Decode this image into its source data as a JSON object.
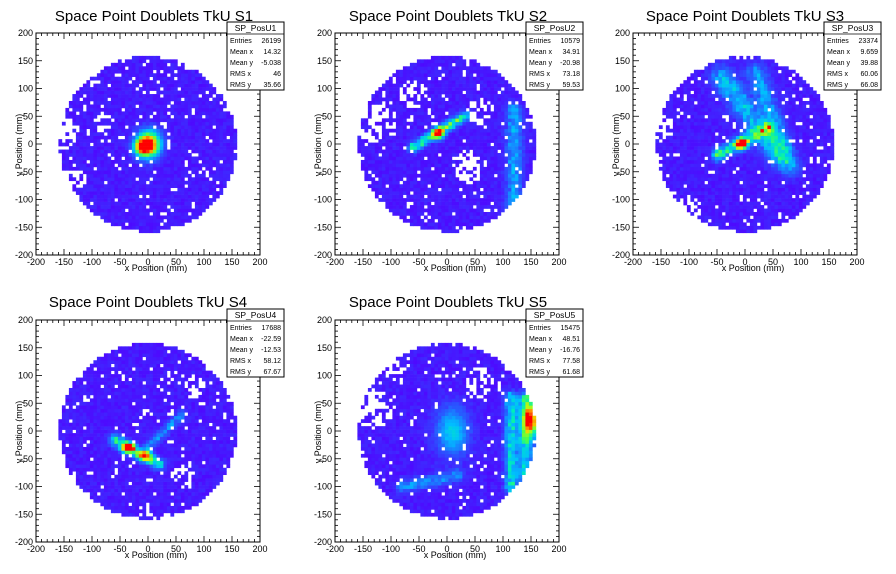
{
  "chart_data": [
    {
      "type": "heatmap",
      "title": "Space Point Doublets TkU S1",
      "xlabel": "x Position (mm)",
      "ylabel": "y Position (mm)",
      "xlim": [
        -200,
        200
      ],
      "ylim": [
        -200,
        200
      ],
      "x_ticks": [
        "-200",
        "-150",
        "-100",
        "-50",
        "0",
        "50",
        "100",
        "150",
        "200"
      ],
      "y_ticks": [
        "-200",
        "-150",
        "-100",
        "-50",
        "0",
        "50",
        "100",
        "150",
        "200"
      ],
      "stats": {
        "name": "SP_PosU1",
        "rows": [
          {
            "label": "Entries",
            "value": "26199"
          },
          {
            "label": "Mean x",
            "value": "14.32"
          },
          {
            "label": "Mean y",
            "value": "-5.038"
          },
          {
            "label": "RMS x",
            "value": "46"
          },
          {
            "label": "RMS y",
            "value": "35.66"
          }
        ]
      },
      "hotspots": [
        {
          "x": 2,
          "y": 0,
          "sx": 14,
          "sy": 16,
          "amp": 1.0
        },
        {
          "x": -12,
          "y": -5,
          "sx": 10,
          "sy": 10,
          "amp": 0.6
        }
      ],
      "ridges": [],
      "holes": [
        {
          "x": -150,
          "y": 20,
          "r": 28
        },
        {
          "x": -130,
          "y": -60,
          "r": 22
        },
        {
          "x": -80,
          "y": 40,
          "r": 16
        }
      ]
    },
    {
      "type": "heatmap",
      "title": "Space Point Doublets TkU S2",
      "xlabel": "x Position (mm)",
      "ylabel": "y Position (mm)",
      "xlim": [
        -200,
        200
      ],
      "ylim": [
        -200,
        200
      ],
      "x_ticks": [
        "-200",
        "-150",
        "-100",
        "-50",
        "0",
        "50",
        "100",
        "150",
        "200"
      ],
      "y_ticks": [
        "-200",
        "-150",
        "-100",
        "-50",
        "0",
        "50",
        "100",
        "150",
        "200"
      ],
      "stats": {
        "name": "SP_PosU2",
        "rows": [
          {
            "label": "Entries",
            "value": "10579"
          },
          {
            "label": "Mean x",
            "value": "34.91"
          },
          {
            "label": "Mean y",
            "value": "-20.98"
          },
          {
            "label": "RMS x",
            "value": "73.18"
          },
          {
            "label": "RMS y",
            "value": "59.53"
          }
        ]
      },
      "hotspots": [
        {
          "x": -15,
          "y": 20,
          "sx": 7,
          "sy": 7,
          "amp": 0.85
        }
      ],
      "ridges": [
        {
          "x1": -60,
          "y1": -5,
          "x2": 30,
          "y2": 50,
          "w": 6,
          "amp": 0.55
        },
        {
          "x1": 120,
          "y1": -120,
          "x2": 120,
          "y2": 60,
          "w": 10,
          "amp": 0.3
        }
      ],
      "holes": [
        {
          "x": -130,
          "y": 40,
          "r": 40
        },
        {
          "x": -60,
          "y": 90,
          "r": 25
        },
        {
          "x": 60,
          "y": 60,
          "r": 24
        },
        {
          "x": 40,
          "y": -40,
          "r": 30
        }
      ]
    },
    {
      "type": "heatmap",
      "title": "Space Point Doublets TkU S3",
      "xlabel": "x Position (mm)",
      "ylabel": "y Position (mm)",
      "xlim": [
        -200,
        200
      ],
      "ylim": [
        -200,
        200
      ],
      "x_ticks": [
        "-200",
        "-150",
        "-100",
        "-50",
        "0",
        "50",
        "100",
        "150",
        "200"
      ],
      "y_ticks": [
        "-200",
        "-150",
        "-100",
        "-50",
        "0",
        "50",
        "100",
        "150",
        "200"
      ],
      "stats": {
        "name": "SP_PosU3",
        "rows": [
          {
            "label": "Entries",
            "value": "23374"
          },
          {
            "label": "Mean x",
            "value": "9.659"
          },
          {
            "label": "Mean y",
            "value": "39.88"
          },
          {
            "label": "RMS x",
            "value": "60.06"
          },
          {
            "label": "RMS y",
            "value": "66.08"
          }
        ]
      },
      "hotspots": [
        {
          "x": -5,
          "y": 0,
          "sx": 7,
          "sy": 7,
          "amp": 0.9
        }
      ],
      "ridges": [
        {
          "x1": -50,
          "y1": -20,
          "x2": 40,
          "y2": 30,
          "w": 7,
          "amp": 0.55
        },
        {
          "x1": -40,
          "y1": 120,
          "x2": 60,
          "y2": -20,
          "w": 14,
          "amp": 0.35
        },
        {
          "x1": 20,
          "y1": 130,
          "x2": 80,
          "y2": -40,
          "w": 12,
          "amp": 0.3
        }
      ],
      "holes": [
        {
          "x": -150,
          "y": 30,
          "r": 25
        },
        {
          "x": -100,
          "y": -120,
          "r": 25
        }
      ]
    },
    {
      "type": "heatmap",
      "title": "Space Point Doublets TkU S4",
      "xlabel": "x Position (mm)",
      "ylabel": "y Position (mm)",
      "xlim": [
        -200,
        200
      ],
      "ylim": [
        -200,
        200
      ],
      "x_ticks": [
        "-200",
        "-150",
        "-100",
        "-50",
        "0",
        "50",
        "100",
        "150",
        "200"
      ],
      "y_ticks": [
        "-200",
        "-150",
        "-100",
        "-50",
        "0",
        "50",
        "100",
        "150",
        "200"
      ],
      "stats": {
        "name": "SP_PosU4",
        "rows": [
          {
            "label": "Entries",
            "value": "17688"
          },
          {
            "label": "Mean x",
            "value": "-22.59"
          },
          {
            "label": "Mean y",
            "value": "-12.53"
          },
          {
            "label": "RMS x",
            "value": "58.12"
          },
          {
            "label": "RMS y",
            "value": "67.67"
          }
        ]
      },
      "hotspots": [
        {
          "x": -35,
          "y": -30,
          "sx": 8,
          "sy": 6,
          "amp": 1.0
        },
        {
          "x": -5,
          "y": -45,
          "sx": 8,
          "sy": 6,
          "amp": 0.7
        }
      ],
      "ridges": [
        {
          "x1": -60,
          "y1": -15,
          "x2": 20,
          "y2": -60,
          "w": 7,
          "amp": 0.5
        },
        {
          "x1": 0,
          "y1": -30,
          "x2": 60,
          "y2": 30,
          "w": 6,
          "amp": 0.25
        }
      ],
      "holes": [
        {
          "x": 80,
          "y": 80,
          "r": 20
        },
        {
          "x": 60,
          "y": -80,
          "r": 22
        }
      ]
    },
    {
      "type": "heatmap",
      "title": "Space Point Doublets TkU S5",
      "xlabel": "x Position (mm)",
      "ylabel": "y Position (mm)",
      "xlim": [
        -200,
        200
      ],
      "ylim": [
        -200,
        200
      ],
      "x_ticks": [
        "-200",
        "-150",
        "-100",
        "-50",
        "0",
        "50",
        "100",
        "150",
        "200"
      ],
      "y_ticks": [
        "-200",
        "-150",
        "-100",
        "-50",
        "0",
        "50",
        "100",
        "150",
        "200"
      ],
      "stats": {
        "name": "SP_PosU5",
        "rows": [
          {
            "label": "Entries",
            "value": "15475"
          },
          {
            "label": "Mean x",
            "value": "48.51"
          },
          {
            "label": "Mean y",
            "value": "-16.76"
          },
          {
            "label": "RMS x",
            "value": "77.58"
          },
          {
            "label": "RMS y",
            "value": "61.68"
          }
        ]
      },
      "hotspots": [
        {
          "x": 150,
          "y": 20,
          "sx": 10,
          "sy": 20,
          "amp": 0.85
        },
        {
          "x": 10,
          "y": 0,
          "sx": 20,
          "sy": 30,
          "amp": 0.35
        }
      ],
      "ridges": [
        {
          "x1": 115,
          "y1": -100,
          "x2": 115,
          "y2": 60,
          "w": 8,
          "amp": 0.45
        },
        {
          "x1": 140,
          "y1": -80,
          "x2": 140,
          "y2": 60,
          "w": 8,
          "amp": 0.45
        },
        {
          "x1": -80,
          "y1": -100,
          "x2": 20,
          "y2": -80,
          "w": 8,
          "amp": 0.25
        }
      ],
      "holes": [
        {
          "x": -130,
          "y": 40,
          "r": 35
        },
        {
          "x": -90,
          "y": 110,
          "r": 20
        },
        {
          "x": 60,
          "y": 90,
          "r": 25
        }
      ]
    }
  ]
}
